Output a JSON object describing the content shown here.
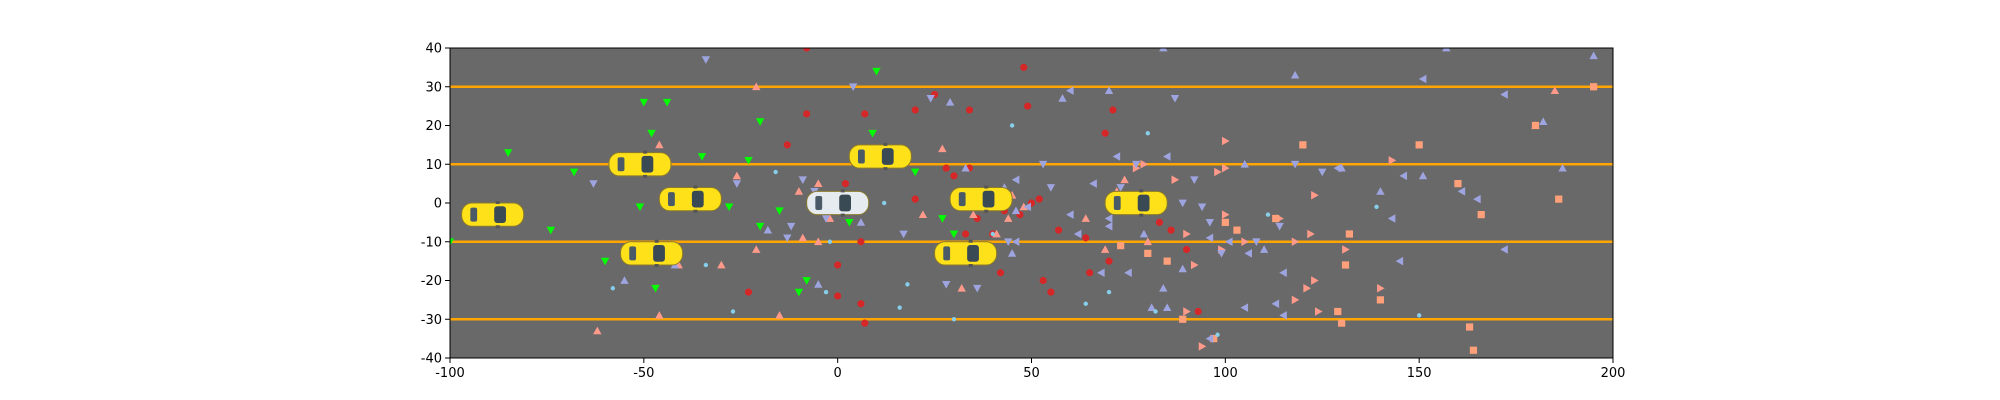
{
  "chart_data": {
    "type": "scatter",
    "title": "",
    "xlabel": "",
    "ylabel": "",
    "xlim": [
      -100,
      200
    ],
    "ylim": [
      -40,
      40
    ],
    "xticks": [
      -100,
      -50,
      0,
      50,
      100,
      150,
      200
    ],
    "yticks": [
      -40,
      -30,
      -20,
      -10,
      0,
      10,
      20,
      30,
      40
    ],
    "grid": false,
    "legend": "none",
    "background_color": "#696969",
    "lane_line_color": "#ffa500",
    "lane_lines_y": [
      30,
      10,
      -10,
      -30
    ],
    "vehicles": [
      {
        "role": "ego",
        "color": "#e6ebef",
        "x": 0,
        "y": 0
      },
      {
        "role": "other",
        "color": "#ffe11a",
        "x": -89,
        "y": -3
      },
      {
        "role": "other",
        "color": "#ffe11a",
        "x": -51,
        "y": 10
      },
      {
        "role": "other",
        "color": "#ffe11a",
        "x": -38,
        "y": 1
      },
      {
        "role": "other",
        "color": "#ffe11a",
        "x": -48,
        "y": -13
      },
      {
        "role": "other",
        "color": "#ffe11a",
        "x": 11,
        "y": 12
      },
      {
        "role": "other",
        "color": "#ffe11a",
        "x": 37,
        "y": 1
      },
      {
        "role": "other",
        "color": "#ffe11a",
        "x": 33,
        "y": -13
      },
      {
        "role": "other",
        "color": "#ffe11a",
        "x": 77,
        "y": 0
      }
    ],
    "series": [
      {
        "marker": "triangle-down",
        "color": "#00ff00",
        "points": [
          [
            -100,
            -10
          ],
          [
            -85,
            13
          ],
          [
            -68,
            8
          ],
          [
            -74,
            -7
          ],
          [
            -50,
            26
          ],
          [
            -44,
            26
          ],
          [
            -48,
            18
          ],
          [
            -51,
            -1
          ],
          [
            -35,
            12
          ],
          [
            -28,
            -1
          ],
          [
            -20,
            21
          ],
          [
            -23,
            11
          ],
          [
            -15,
            -2
          ],
          [
            -60,
            -15
          ],
          [
            -10,
            -23
          ],
          [
            -8,
            -20
          ],
          [
            -47,
            -22
          ],
          [
            10,
            34
          ],
          [
            9,
            18
          ],
          [
            -20,
            -6
          ],
          [
            3,
            -5
          ],
          [
            20,
            8
          ],
          [
            30,
            -8
          ],
          [
            27,
            -4
          ]
        ]
      },
      {
        "marker": "circle",
        "color": "#d62728",
        "points": [
          [
            -8,
            40
          ],
          [
            -8,
            23
          ],
          [
            -13,
            15
          ],
          [
            2,
            5
          ],
          [
            7,
            23
          ],
          [
            20,
            24
          ],
          [
            25,
            28
          ],
          [
            28,
            9
          ],
          [
            34,
            9
          ],
          [
            34,
            24
          ],
          [
            30,
            7
          ],
          [
            20,
            1
          ],
          [
            33,
            -8
          ],
          [
            36,
            -4
          ],
          [
            40,
            -8
          ],
          [
            43,
            -2
          ],
          [
            47,
            -3
          ],
          [
            50,
            0
          ],
          [
            52,
            1
          ],
          [
            57,
            -7
          ],
          [
            64,
            -9
          ],
          [
            48,
            35
          ],
          [
            49,
            25
          ],
          [
            69,
            18
          ],
          [
            71,
            24
          ],
          [
            70,
            -15
          ],
          [
            65,
            -18
          ],
          [
            53,
            -20
          ],
          [
            55,
            -23
          ],
          [
            42,
            -18
          ],
          [
            6,
            -10
          ],
          [
            0,
            -16
          ],
          [
            0,
            -24
          ],
          [
            6,
            -26
          ],
          [
            7,
            -31
          ],
          [
            -23,
            -23
          ],
          [
            83,
            -5
          ],
          [
            86,
            -7
          ],
          [
            90,
            -12
          ],
          [
            93,
            -28
          ]
        ]
      },
      {
        "marker": "triangle-up",
        "color": "#ff9a8a",
        "points": [
          [
            -21,
            30
          ],
          [
            -46,
            15
          ],
          [
            -41,
            -16
          ],
          [
            -30,
            -16
          ],
          [
            -21,
            -12
          ],
          [
            -26,
            7
          ],
          [
            -10,
            3
          ],
          [
            -5,
            5
          ],
          [
            -9,
            -9
          ],
          [
            -5,
            -10
          ],
          [
            -2,
            -4
          ],
          [
            -15,
            -29
          ],
          [
            -46,
            -29
          ],
          [
            -62,
            -33
          ],
          [
            22,
            -3
          ],
          [
            35,
            -3
          ],
          [
            32,
            -22
          ],
          [
            45,
            2
          ],
          [
            41,
            -8
          ],
          [
            48,
            -1
          ],
          [
            72,
            3
          ],
          [
            76,
            0
          ],
          [
            69,
            -12
          ],
          [
            74,
            6
          ],
          [
            80,
            -10
          ],
          [
            44,
            -4
          ],
          [
            27,
            14
          ],
          [
            64,
            -4
          ],
          [
            185,
            29
          ],
          [
            180,
            20
          ]
        ]
      },
      {
        "marker": "triangle-right",
        "color": "#ff9a8a",
        "points": [
          [
            77,
            9
          ],
          [
            79,
            10
          ],
          [
            87,
            6
          ],
          [
            90,
            -8
          ],
          [
            92,
            -16
          ],
          [
            98,
            8
          ],
          [
            100,
            -3
          ],
          [
            99,
            -12
          ],
          [
            100,
            16
          ],
          [
            94,
            -37
          ],
          [
            105,
            -10
          ],
          [
            114,
            -4
          ],
          [
            118,
            -10
          ],
          [
            121,
            -22
          ],
          [
            122,
            -8
          ],
          [
            123,
            -20
          ],
          [
            124,
            -28
          ],
          [
            131,
            -12
          ],
          [
            140,
            -22
          ],
          [
            143,
            11
          ],
          [
            123,
            2
          ],
          [
            118,
            -25
          ],
          [
            90,
            -28
          ],
          [
            81,
            1
          ],
          [
            100,
            9
          ]
        ]
      },
      {
        "marker": "square",
        "color": "#ffa07a",
        "points": [
          [
            195,
            30
          ],
          [
            180,
            20
          ],
          [
            186,
            1
          ],
          [
            166,
            -3
          ],
          [
            160,
            5
          ],
          [
            163,
            -32
          ],
          [
            164,
            -38
          ],
          [
            150,
            15
          ],
          [
            140,
            -25
          ],
          [
            132,
            -8
          ],
          [
            131,
            -16
          ],
          [
            129,
            -28
          ],
          [
            130,
            -31
          ],
          [
            120,
            15
          ],
          [
            113,
            -4
          ],
          [
            103,
            -7
          ],
          [
            100,
            -5
          ],
          [
            85,
            -15
          ],
          [
            80,
            -13
          ],
          [
            73,
            -11
          ],
          [
            97,
            -35
          ],
          [
            89,
            -30
          ]
        ]
      },
      {
        "marker": "triangle-left",
        "color": "#9ea4e0",
        "points": [
          [
            155,
            43
          ],
          [
            151,
            32
          ],
          [
            172,
            28
          ],
          [
            161,
            3
          ],
          [
            165,
            1
          ],
          [
            172,
            -12
          ],
          [
            145,
            -15
          ],
          [
            146,
            7
          ],
          [
            143,
            -4
          ],
          [
            129,
            9
          ],
          [
            115,
            -18
          ],
          [
            113,
            -26
          ],
          [
            105,
            -27
          ],
          [
            96,
            -9
          ],
          [
            101,
            -10
          ],
          [
            106,
            -13
          ],
          [
            85,
            12
          ],
          [
            72,
            12
          ],
          [
            70,
            -4
          ],
          [
            68,
            -18
          ],
          [
            66,
            5
          ],
          [
            60,
            -3
          ],
          [
            62,
            -8
          ],
          [
            46,
            -10
          ],
          [
            46,
            6
          ],
          [
            49,
            -1
          ],
          [
            60,
            29
          ],
          [
            70,
            -6
          ],
          [
            75,
            -18
          ],
          [
            115,
            -29
          ],
          [
            96,
            -35
          ]
        ]
      },
      {
        "marker": "triangle-down",
        "color": "#9ea4e0",
        "points": [
          [
            -34,
            37
          ],
          [
            -26,
            5
          ],
          [
            -13,
            -9
          ],
          [
            -12,
            -6
          ],
          [
            -3,
            -4
          ],
          [
            -9,
            6
          ],
          [
            -6,
            3
          ],
          [
            4,
            30
          ],
          [
            17,
            -8
          ],
          [
            24,
            27
          ],
          [
            28,
            -21
          ],
          [
            35,
            -1
          ],
          [
            36,
            -22
          ],
          [
            44,
            -10
          ],
          [
            53,
            10
          ],
          [
            55,
            4
          ],
          [
            73,
            4
          ],
          [
            77,
            10
          ],
          [
            80,
            1
          ],
          [
            87,
            27
          ],
          [
            89,
            0
          ],
          [
            92,
            6
          ],
          [
            94,
            -1
          ],
          [
            96,
            -5
          ],
          [
            99,
            -13
          ],
          [
            108,
            -10
          ],
          [
            114,
            -6
          ],
          [
            118,
            10
          ],
          [
            125,
            8
          ],
          [
            -63,
            5
          ]
        ]
      },
      {
        "marker": "triangle-up",
        "color": "#9ea4e0",
        "points": [
          [
            118,
            33
          ],
          [
            157,
            40
          ],
          [
            195,
            38
          ],
          [
            187,
            9
          ],
          [
            182,
            21
          ],
          [
            151,
            7
          ],
          [
            140,
            3
          ],
          [
            130,
            9
          ],
          [
            105,
            10
          ],
          [
            110,
            -12
          ],
          [
            89,
            -17
          ],
          [
            85,
            -27
          ],
          [
            81,
            -27
          ],
          [
            84,
            -22
          ],
          [
            79,
            -8
          ],
          [
            70,
            29
          ],
          [
            58,
            27
          ],
          [
            45,
            -13
          ],
          [
            46,
            -2
          ],
          [
            43,
            4
          ],
          [
            29,
            26
          ],
          [
            33,
            9
          ],
          [
            40,
            2
          ],
          [
            -5,
            -21
          ],
          [
            -1,
            1
          ],
          [
            6,
            -5
          ],
          [
            -18,
            -7
          ],
          [
            -42,
            -16
          ],
          [
            -55,
            -20
          ],
          [
            84,
            40
          ]
        ]
      },
      {
        "marker": "circle-small",
        "color": "#87ceeb",
        "points": [
          [
            -58,
            -22
          ],
          [
            -34,
            -16
          ],
          [
            -27,
            -28
          ],
          [
            -16,
            8
          ],
          [
            -3,
            -23
          ],
          [
            12,
            0
          ],
          [
            16,
            -27
          ],
          [
            18,
            -21
          ],
          [
            30,
            -30
          ],
          [
            40,
            -8
          ],
          [
            45,
            20
          ],
          [
            64,
            -26
          ],
          [
            70,
            -23
          ],
          [
            80,
            18
          ],
          [
            82,
            -28
          ],
          [
            98,
            -34
          ],
          [
            111,
            -3
          ],
          [
            139,
            -1
          ],
          [
            150,
            -29
          ],
          [
            -2,
            -10
          ]
        ]
      }
    ]
  }
}
